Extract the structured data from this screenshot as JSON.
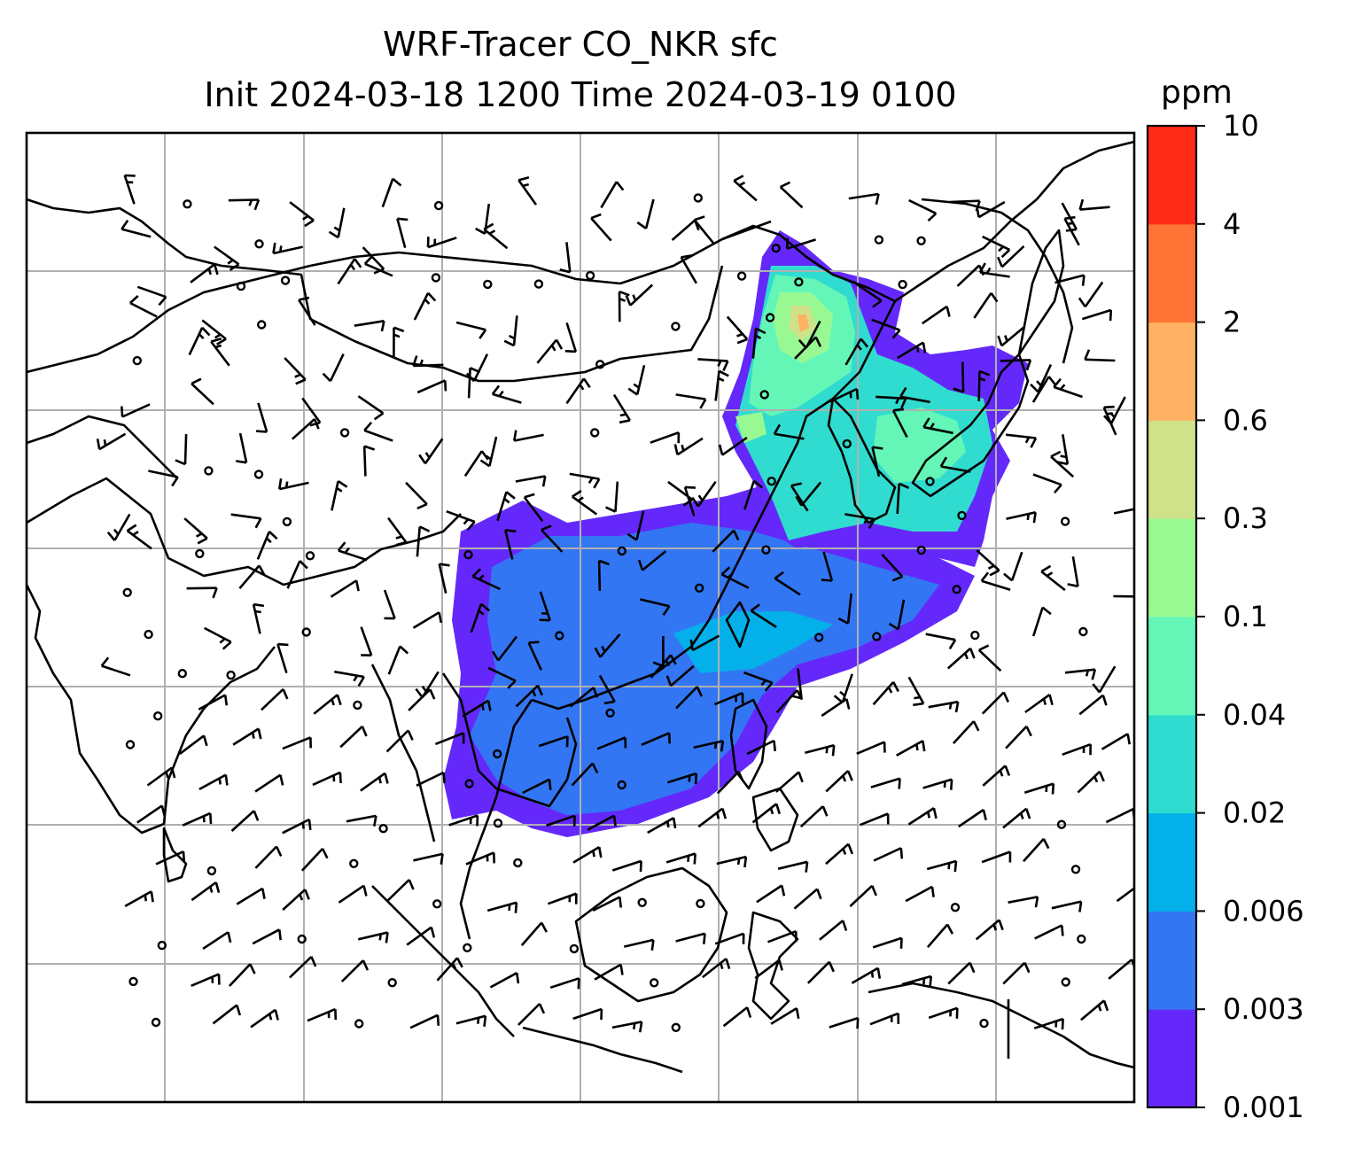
{
  "title": {
    "line1": "WRF-Tracer CO_NKR sfc",
    "line2": "Init 2024-03-18 1200 Time 2024-03-19 0100"
  },
  "colorbar": {
    "unit": "ppm",
    "levels": [
      "0.001",
      "0.003",
      "0.006",
      "0.02",
      "0.04",
      "0.1",
      "0.3",
      "0.6",
      "2",
      "4",
      "10"
    ],
    "colors": [
      "#6429fa",
      "#3376f3",
      "#04b0ea",
      "#30dccf",
      "#64f6b7",
      "#98f993",
      "#cfe189",
      "#feb162",
      "#ff7335",
      "#ff2b17"
    ]
  },
  "map": {
    "gridlines": true,
    "barb_color": "#000000",
    "coastline_color": "#000000",
    "gridline_color": "#b0b0b0"
  }
}
